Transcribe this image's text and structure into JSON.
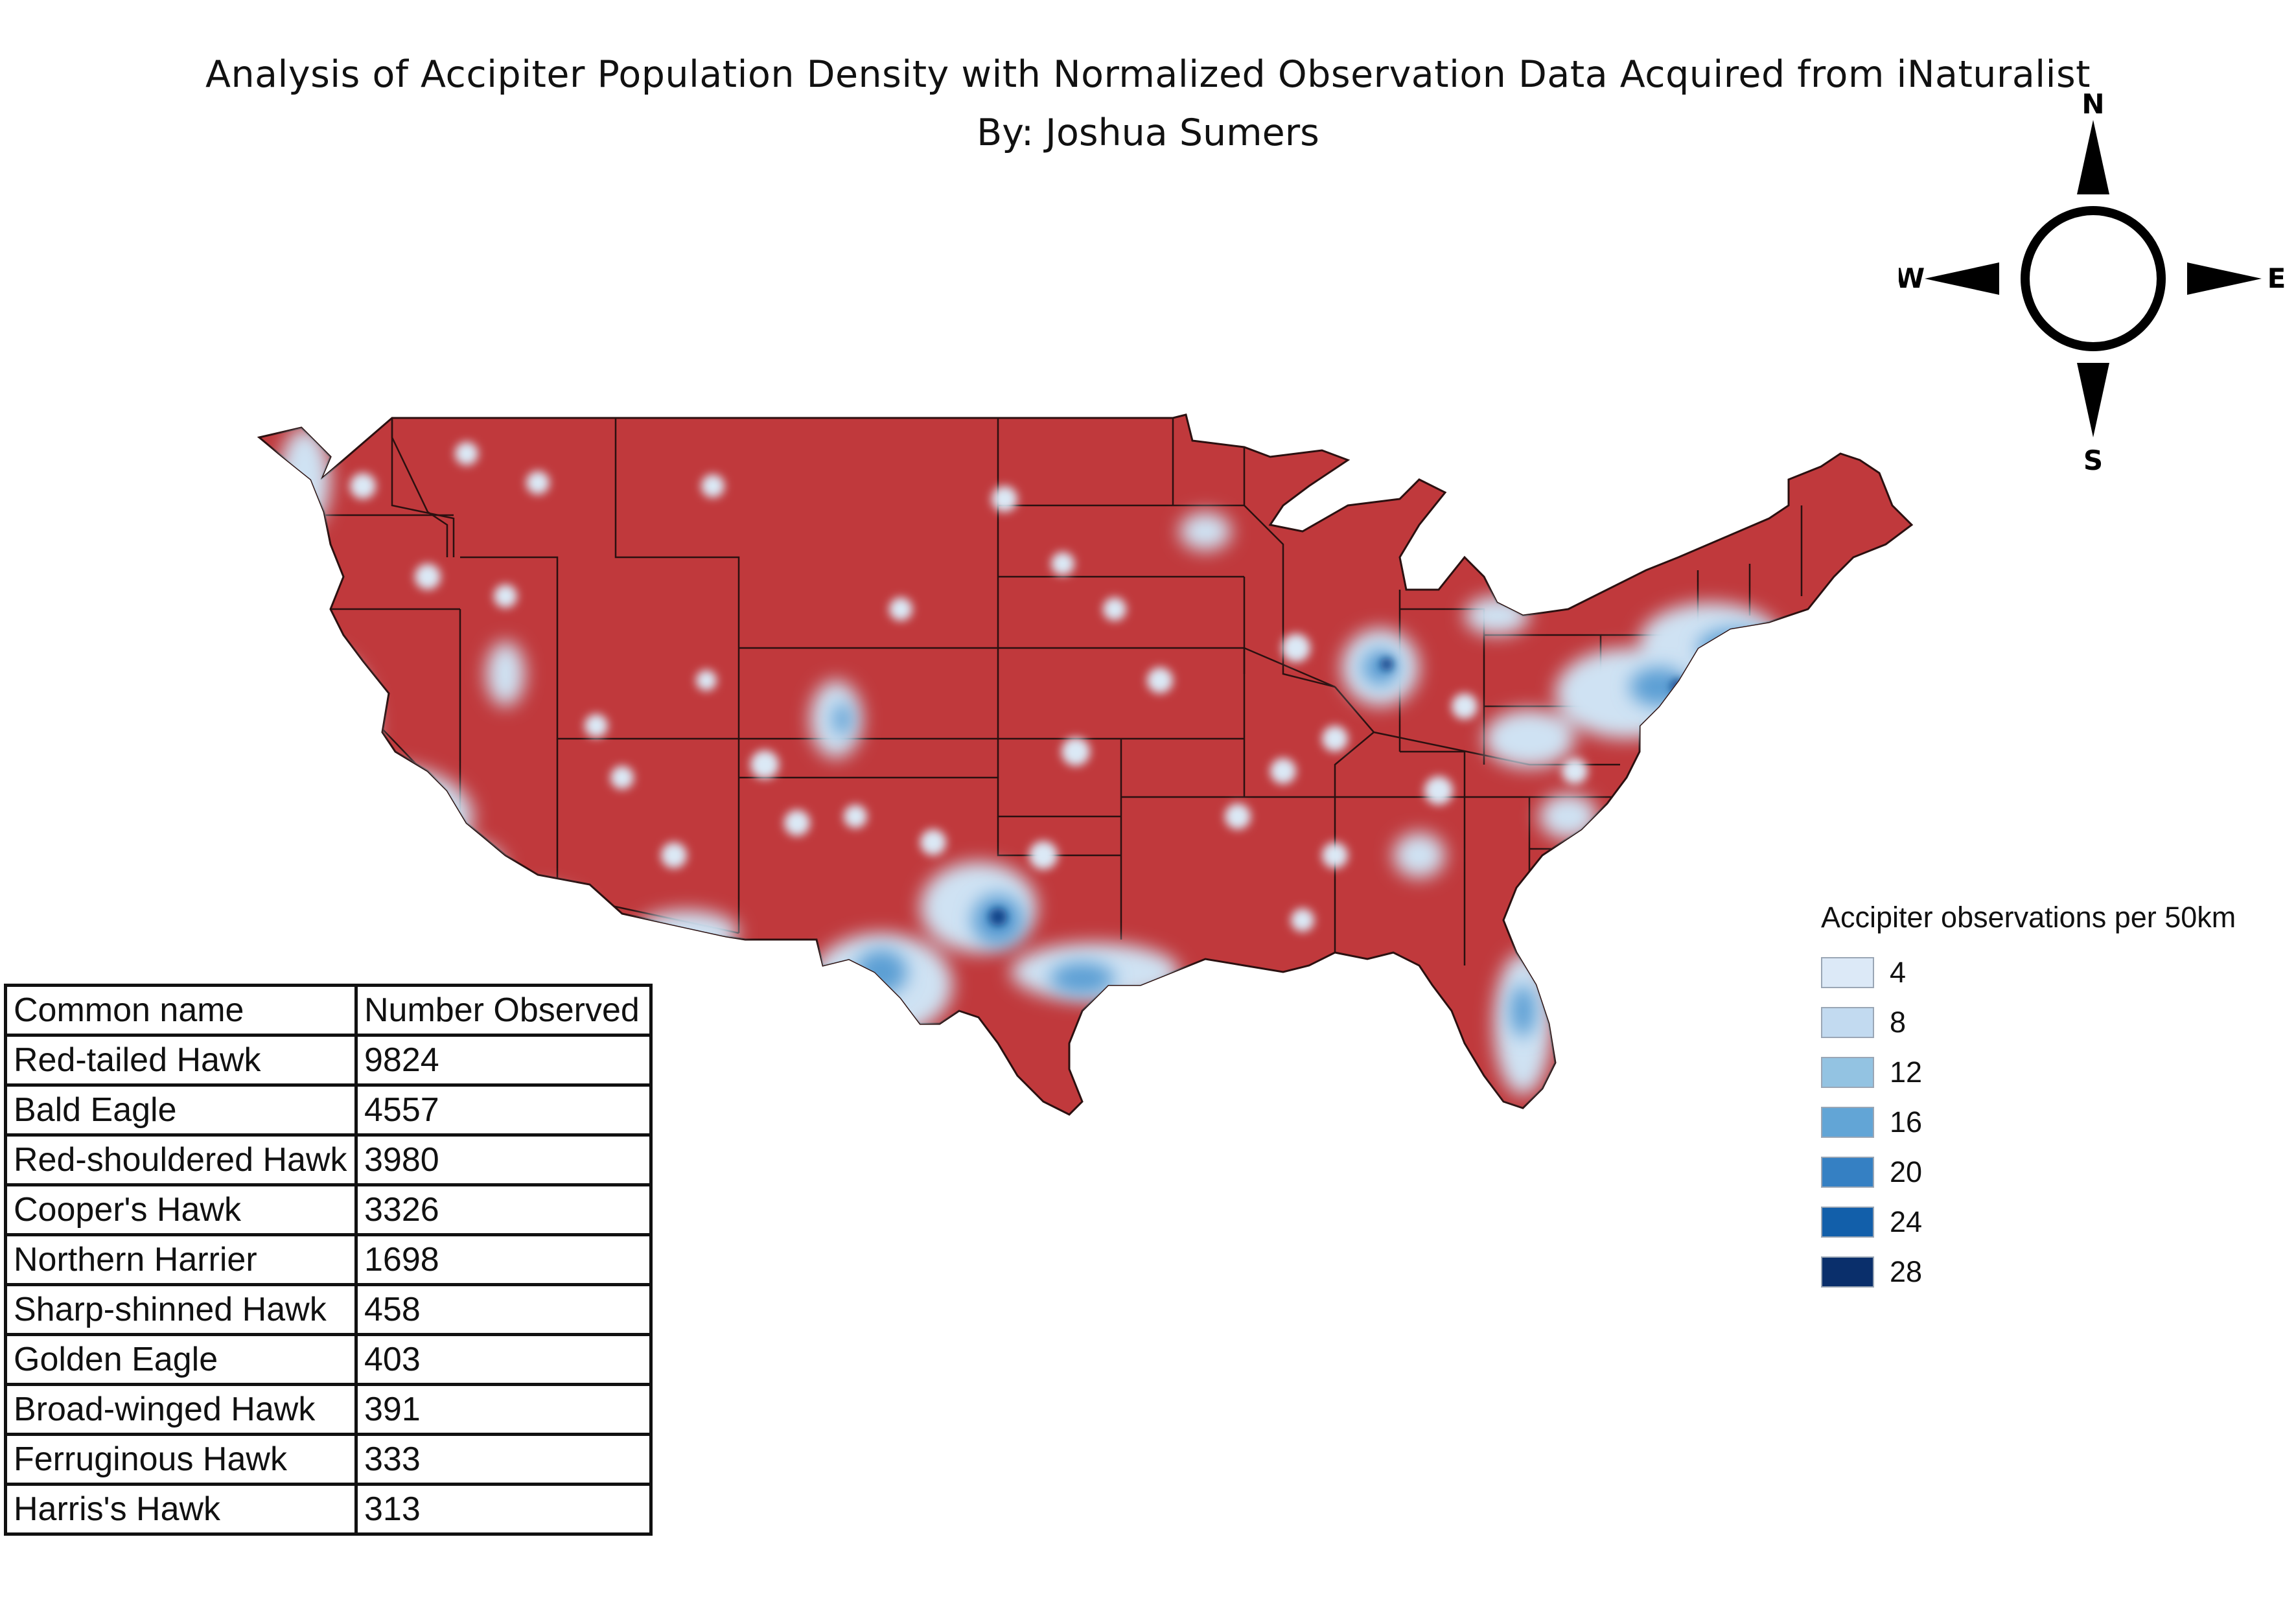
{
  "title": "Analysis of Accipiter Population Density with Normalized Observation Data Acquired from iNaturalist",
  "subtitle": "By: Joshua Sumers",
  "compass": {
    "north": "N",
    "south": "S",
    "east": "E",
    "west": "W"
  },
  "colors": {
    "land": "#c0393c",
    "border": "#2b1010",
    "density_scale": [
      "#dce9f7",
      "#c2daf0",
      "#93c3e2",
      "#62a5d6",
      "#3580c3",
      "#125faa",
      "#0a2f6b"
    ]
  },
  "legend": {
    "title": "Accipiter observations per 50km",
    "entries": [
      {
        "label": "4",
        "color": "#dce9f7"
      },
      {
        "label": "8",
        "color": "#c2daf0"
      },
      {
        "label": "12",
        "color": "#93c3e2"
      },
      {
        "label": "16",
        "color": "#62a5d6"
      },
      {
        "label": "20",
        "color": "#3580c3"
      },
      {
        "label": "24",
        "color": "#125faa"
      },
      {
        "label": "28",
        "color": "#0a2f6b"
      }
    ]
  },
  "table": {
    "headers": [
      "Common name",
      "Number Observed"
    ],
    "rows": [
      [
        "Red-tailed Hawk",
        "9824"
      ],
      [
        "Bald Eagle",
        "4557"
      ],
      [
        "Red-shouldered Hawk",
        "3980"
      ],
      [
        "Cooper's Hawk",
        "3326"
      ],
      [
        "Northern Harrier",
        "1698"
      ],
      [
        "Sharp-shinned Hawk",
        "458"
      ],
      [
        "Golden Eagle",
        "403"
      ],
      [
        "Broad-winged Hawk",
        "391"
      ],
      [
        "Ferruginous Hawk",
        "333"
      ],
      [
        "Harris's Hawk",
        "313"
      ]
    ]
  }
}
